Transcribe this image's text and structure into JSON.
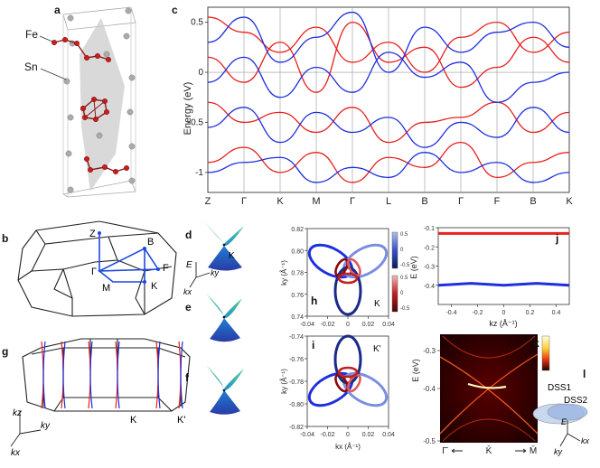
{
  "labels": {
    "a": "a",
    "b": "b",
    "c": "c",
    "d": "d",
    "e": "e",
    "f": "f",
    "g": "g",
    "h": "h",
    "i": "i",
    "j": "j",
    "k": "k",
    "l": "l"
  },
  "panel_a": {
    "fe": "Fe",
    "sn": "Sn"
  },
  "panel_b": {
    "Z": "Z",
    "B": "B",
    "F": "F",
    "Gamma": "Γ",
    "K": "K",
    "M": "M"
  },
  "panel_g": {
    "K": "K",
    "Kp": "K'",
    "kz": "kz",
    "ky": "ky",
    "kx": "kx"
  },
  "panel_d": {
    "E": "E",
    "K": "K",
    "ky": "ky",
    "kx": "kx"
  },
  "panel_h": {
    "corner": "K"
  },
  "panel_i": {
    "corner": "K'"
  },
  "panel_k": {
    "ylabel": "E (eV)"
  },
  "panel_l": {
    "dss1": "DSS1",
    "dss2": "DSS2",
    "E": "E",
    "ky": "ky",
    "kx": "kx"
  },
  "colors": {
    "spin_up": "#e8201e",
    "spin_down": "#1e2fe0"
  },
  "chart_data": [
    {
      "id": "c",
      "type": "line",
      "ylabel": "Energy (eV)",
      "ylim": [
        -1.2,
        0.65
      ],
      "yticks": [
        "0.5",
        "0",
        "-0.5",
        "-1"
      ],
      "kpoints": [
        "Z",
        "Γ",
        "K",
        "M",
        "Γ",
        "L",
        "B",
        "Γ",
        "F",
        "B",
        "K"
      ],
      "series": [
        {
          "color": "#e8201e",
          "values": [
            0.55,
            0.4,
            0.2,
            0.45,
            0.1,
            0.3,
            0.0,
            0.35,
            0.5,
            0.2,
            0.4
          ]
        },
        {
          "color": "#e8201e",
          "values": [
            -0.3,
            -0.5,
            -0.4,
            -0.6,
            -0.35,
            -0.7,
            -0.5,
            -0.45,
            -0.3,
            -0.6,
            -0.4
          ]
        },
        {
          "color": "#e8201e",
          "values": [
            0.15,
            -0.1,
            0.3,
            -0.2,
            0.5,
            0.1,
            0.25,
            -0.15,
            0.05,
            0.35,
            0.1
          ]
        },
        {
          "color": "#e8201e",
          "values": [
            -0.9,
            -0.75,
            -1.0,
            -0.8,
            -1.1,
            -0.85,
            -0.95,
            -0.7,
            -1.05,
            -0.9,
            -0.8
          ]
        },
        {
          "color": "#1e2fe0",
          "values": [
            0.3,
            0.55,
            0.1,
            0.35,
            0.6,
            0.0,
            0.45,
            0.2,
            0.4,
            0.5,
            0.25
          ]
        },
        {
          "color": "#1e2fe0",
          "values": [
            -0.1,
            0.15,
            -0.25,
            0.05,
            -0.2,
            0.2,
            -0.05,
            0.1,
            -0.3,
            -0.1,
            0.0
          ]
        },
        {
          "color": "#1e2fe0",
          "values": [
            -0.55,
            -0.35,
            -0.7,
            -0.4,
            -0.6,
            -0.45,
            -0.75,
            -0.5,
            -0.65,
            -0.35,
            -0.6
          ]
        },
        {
          "color": "#1e2fe0",
          "values": [
            -1.0,
            -0.9,
            -0.85,
            -1.1,
            -0.95,
            -1.05,
            -0.8,
            -1.0,
            -0.9,
            -1.1,
            -1.0
          ]
        }
      ]
    },
    {
      "id": "h",
      "type": "line",
      "xlim": [
        -0.04,
        0.04
      ],
      "ylim": [
        0.74,
        0.82
      ],
      "xticks": [
        "-0.04",
        "-0.02",
        "0",
        "0.02",
        "0.04"
      ],
      "yticks": [
        "0.82",
        "0.80",
        "0.78",
        "0.76",
        "0.74"
      ],
      "ylabel": "ky (Å⁻¹)",
      "colorbar_top": [
        "0.5",
        "0",
        "-0.5"
      ],
      "colorbar_bottom": [
        "0.5",
        "0",
        "-0.5"
      ]
    },
    {
      "id": "i",
      "type": "line",
      "xlim": [
        -0.04,
        0.04
      ],
      "ylim": [
        -0.82,
        -0.74
      ],
      "xticks": [
        "-0.04",
        "-0.02",
        "0",
        "0.02",
        "0.04"
      ],
      "yticks": [
        "-0.74",
        "-0.76",
        "-0.78",
        "-0.80",
        "-0.82"
      ],
      "xlabel": "kx (Å⁻¹)",
      "ylabel": "ky (Å⁻¹)"
    },
    {
      "id": "j",
      "type": "line",
      "xlim": [
        -0.5,
        0.5
      ],
      "ylim": [
        -0.5,
        -0.1
      ],
      "xticks": [
        "-0.4",
        "-0.2",
        "0",
        "0.2",
        "0.4"
      ],
      "yticks": [
        "-0.1",
        "-0.2",
        "-0.3",
        "-0.4"
      ],
      "xlabel": "kz (Å⁻¹)",
      "ylabel": "E (eV)",
      "series": [
        {
          "color": "#e8201e",
          "values": [
            -0.13,
            -0.13,
            -0.13,
            -0.13,
            -0.13
          ]
        },
        {
          "color": "#1e2fe0",
          "values": [
            -0.4,
            -0.39,
            -0.4,
            -0.39,
            -0.4
          ]
        }
      ]
    },
    {
      "id": "k",
      "type": "heatmap",
      "yticks": [
        "-0.3",
        "-0.4",
        "-0.5"
      ],
      "xlabels": [
        "Γ̄",
        "K̄",
        "M̄"
      ]
    }
  ]
}
